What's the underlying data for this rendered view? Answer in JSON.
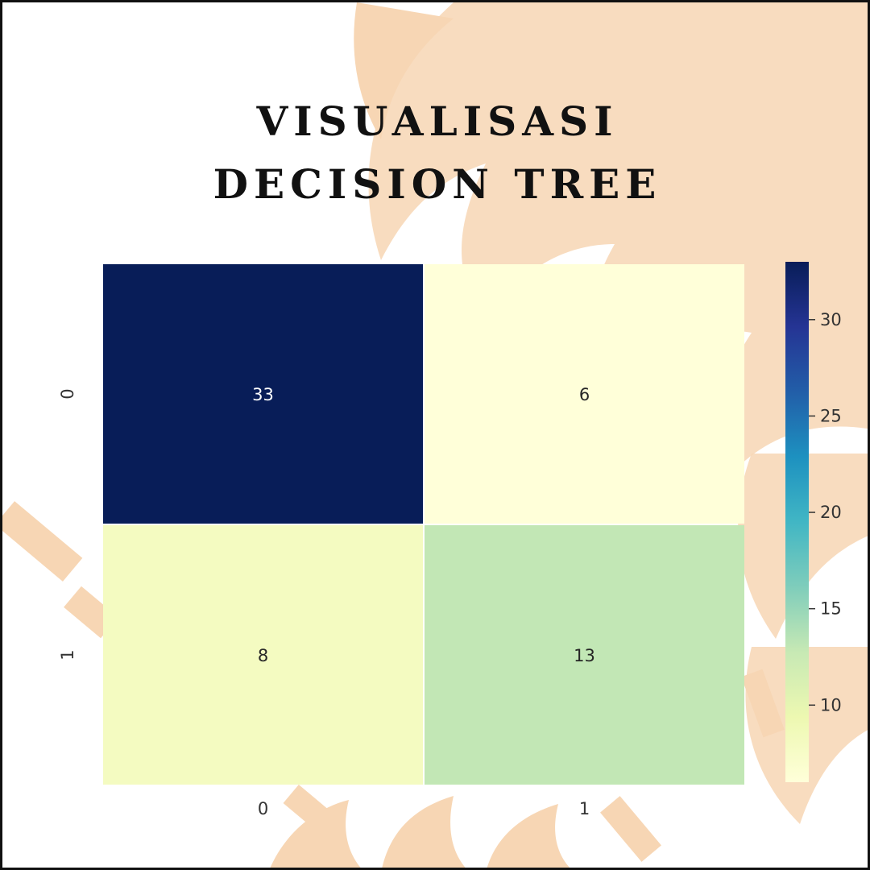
{
  "title": {
    "line1": "VISUALISASI",
    "line2": "DECISION TREE"
  },
  "colors": {
    "decoration": "#f7d6b4",
    "border": "#111111",
    "text": "#111111",
    "colormap_stops": [
      "#ffffd9",
      "#edf8b1",
      "#c7e9b4",
      "#7fcdbb",
      "#41b6c4",
      "#1d91c0",
      "#225ea8",
      "#253494",
      "#081d58"
    ]
  },
  "chart_data": {
    "type": "heatmap",
    "title": "VISUALISASI DECISION TREE",
    "row_labels": [
      "0",
      "1"
    ],
    "col_labels": [
      "0",
      "1"
    ],
    "values": [
      [
        33,
        6
      ],
      [
        8,
        13
      ]
    ],
    "annotations": true,
    "colormap": "YlGnBu",
    "colorbar": {
      "range": [
        6,
        33
      ],
      "ticks": [
        "10",
        "15",
        "20",
        "25",
        "30"
      ]
    },
    "xlabel": "",
    "ylabel": ""
  }
}
